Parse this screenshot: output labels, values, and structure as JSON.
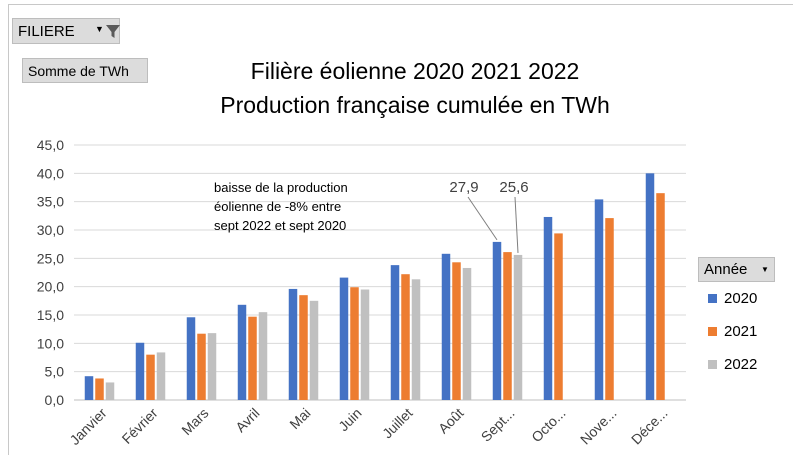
{
  "controls": {
    "filter_label": "FILIERE",
    "value_label": "Somme de TWh",
    "legend_label": "Année",
    "filter_icon": "funnel-icon",
    "dropdown_icon": "chevron-down-icon"
  },
  "chart_data": {
    "type": "bar",
    "title": "Filière éolienne 2020 2021 2022",
    "subtitle": "Production française cumulée  en TWh",
    "xlabel": "",
    "ylabel": "",
    "ylim": [
      0,
      45
    ],
    "yticks": [
      "0,0",
      "5,0",
      "10,0",
      "15,0",
      "20,0",
      "25,0",
      "30,0",
      "35,0",
      "40,0",
      "45,0"
    ],
    "categories": [
      "Janvier",
      "Février",
      "Mars",
      "Avril",
      "Mai",
      "Juin",
      "Juillet",
      "Août",
      "Sept...",
      "Octo...",
      "Nove...",
      "Déce..."
    ],
    "series": [
      {
        "name": "2020",
        "color": "#4472c4",
        "values": [
          4.2,
          10.1,
          14.6,
          16.8,
          19.6,
          21.6,
          23.8,
          25.8,
          27.9,
          32.3,
          35.4,
          40.0
        ]
      },
      {
        "name": "2021",
        "color": "#ed7d31",
        "values": [
          3.8,
          8.0,
          11.7,
          14.7,
          18.5,
          19.9,
          22.2,
          24.3,
          26.1,
          29.4,
          32.1,
          36.5
        ]
      },
      {
        "name": "2022",
        "color": "#c0c0c0",
        "values": [
          3.1,
          8.4,
          11.8,
          15.5,
          17.5,
          19.5,
          21.3,
          23.3,
          25.6,
          null,
          null,
          null
        ]
      }
    ],
    "grid": true,
    "legend_position": "right",
    "annotations": {
      "note_lines": [
        "baisse de la production",
        "éolienne de -8% entre",
        "sept 2022 et sept 2020"
      ],
      "label_2020_sept": "27,9",
      "label_2022_sept": "25,6"
    }
  }
}
